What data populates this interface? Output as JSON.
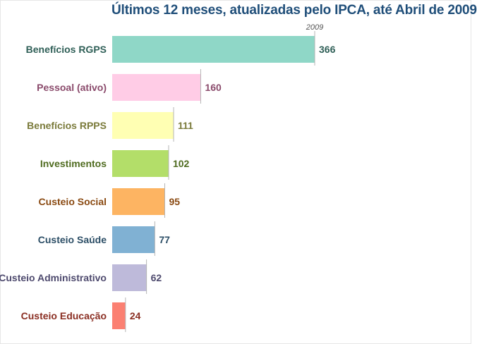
{
  "chart_data": {
    "type": "bar",
    "orientation": "horizontal",
    "title": "Últimos 12 meses, atualizadas pelo IPCA, até Abril de 2009",
    "series_label": "2009",
    "categories": [
      "Benefícios RGPS",
      "Pessoal (ativo)",
      "Benefícios RPPS",
      "Investimentos",
      "Custeio Social",
      "Custeio Saúde",
      "Custeio Administrativo",
      "Custeio Educação"
    ],
    "values": [
      366,
      160,
      111,
      102,
      95,
      77,
      62,
      24
    ],
    "colors": [
      "#8fd7c7",
      "#ffcce6",
      "#ffffb3",
      "#b3de69",
      "#fdb462",
      "#80b1d3",
      "#bebada",
      "#fb8072"
    ],
    "label_colors": [
      "#2f5f57",
      "#8a4a6b",
      "#7a7a3a",
      "#4f6b1f",
      "#8a4a12",
      "#2c4e66",
      "#4e4a6e",
      "#8a2e22"
    ],
    "xlim": [
      0,
      366
    ],
    "grid": false,
    "legend": "none"
  }
}
